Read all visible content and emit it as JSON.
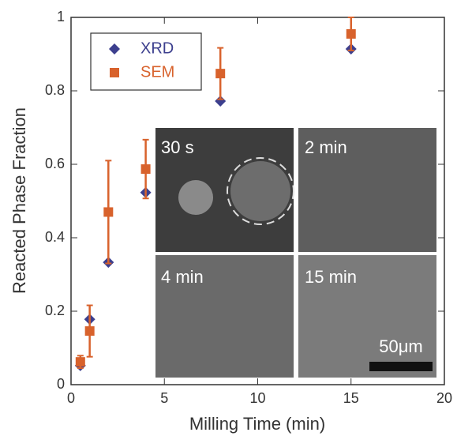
{
  "chart_data": {
    "type": "scatter",
    "xlabel": "Milling Time (min)",
    "ylabel": "Reacted Phase Fraction",
    "x": [
      0.5,
      1,
      2,
      4,
      8,
      15
    ],
    "series": [
      {
        "name": "XRD",
        "color": "#3c3f8e",
        "marker": "diamond",
        "values": [
          0.052,
          0.178,
          0.333,
          0.523,
          0.772,
          0.914
        ]
      },
      {
        "name": "SEM",
        "color": "#d8622c",
        "marker": "square",
        "values": [
          0.062,
          0.146,
          0.47,
          0.587,
          0.847,
          0.955
        ],
        "errors": [
          0.017,
          0.07,
          0.14,
          0.08,
          0.07,
          0.045
        ]
      }
    ],
    "xlim": [
      0,
      20
    ],
    "ylim": [
      0,
      1
    ],
    "xticks": [
      0,
      5,
      10,
      15,
      20
    ],
    "yticks": [
      0,
      0.2,
      0.4,
      0.6,
      0.8,
      1
    ],
    "legend": "upper left",
    "annotations": [
      "30 s",
      "2 min",
      "4 min",
      "15 min",
      "50μm"
    ]
  }
}
